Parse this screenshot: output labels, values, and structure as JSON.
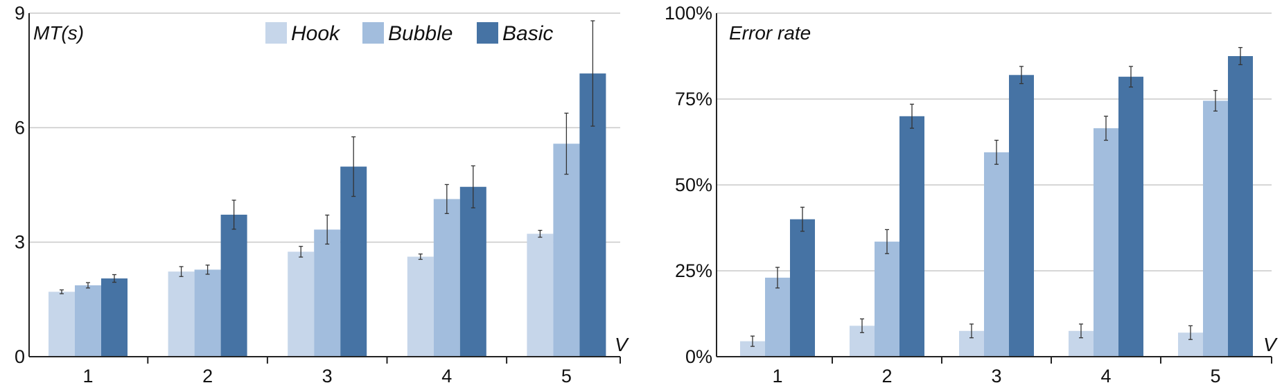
{
  "legend": [
    {
      "name": "Hook",
      "color": "#c6d6ea"
    },
    {
      "name": "Bubble",
      "color": "#a2bddd"
    },
    {
      "name": "Basic",
      "color": "#4673a4"
    }
  ],
  "chart_data": [
    {
      "type": "bar",
      "ylabel": "MT(s)",
      "xlabel": "V",
      "categories": [
        "1",
        "2",
        "3",
        "4",
        "5"
      ],
      "yticks": [
        "0",
        "3",
        "6",
        "9"
      ],
      "ylim": [
        0,
        9
      ],
      "grid": true,
      "legend_position": "top",
      "series": [
        {
          "name": "Hook",
          "values": [
            1.7,
            2.23,
            2.75,
            2.62,
            3.22
          ],
          "err": [
            0.05,
            0.13,
            0.14,
            0.07,
            0.09
          ]
        },
        {
          "name": "Bubble",
          "values": [
            1.87,
            2.28,
            3.33,
            4.13,
            5.58
          ],
          "err": [
            0.07,
            0.12,
            0.38,
            0.38,
            0.8
          ]
        },
        {
          "name": "Basic",
          "values": [
            2.05,
            3.72,
            4.98,
            4.45,
            7.42
          ],
          "err": [
            0.1,
            0.38,
            0.78,
            0.55,
            1.38
          ]
        }
      ]
    },
    {
      "type": "bar",
      "ylabel": "Error rate",
      "xlabel": "V",
      "categories": [
        "1",
        "2",
        "3",
        "4",
        "5"
      ],
      "yticks": [
        "0%",
        "25%",
        "50%",
        "75%",
        "100%"
      ],
      "ylim": [
        0,
        100
      ],
      "grid": true,
      "series": [
        {
          "name": "Hook",
          "values": [
            4.5,
            9,
            7.5,
            7.5,
            7
          ],
          "err": [
            1.5,
            2,
            2,
            2,
            2
          ]
        },
        {
          "name": "Bubble",
          "values": [
            23,
            33.5,
            59.5,
            66.5,
            74.5
          ],
          "err": [
            3,
            3.5,
            3.5,
            3.5,
            3
          ]
        },
        {
          "name": "Basic",
          "values": [
            40,
            70,
            82,
            81.5,
            87.5
          ],
          "err": [
            3.5,
            3.5,
            2.5,
            3,
            2.5
          ]
        }
      ]
    }
  ]
}
